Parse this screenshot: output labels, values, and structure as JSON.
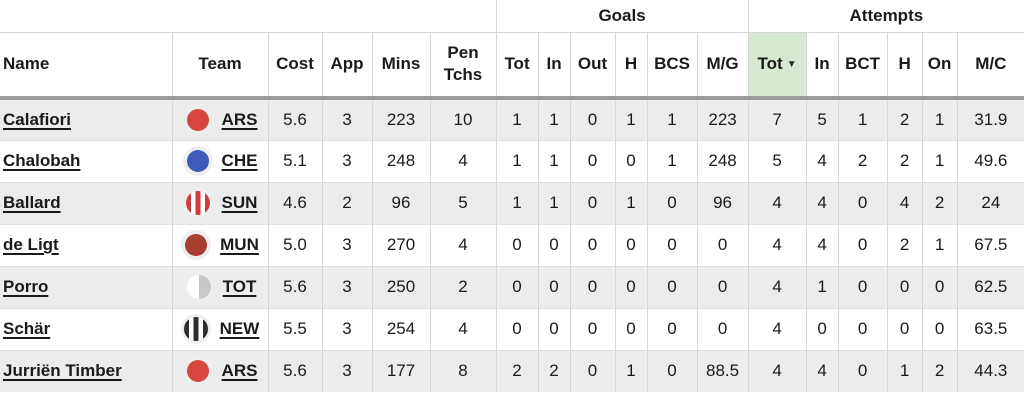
{
  "table": {
    "groups": {
      "goals": "Goals",
      "attempts": "Attempts"
    },
    "columns": [
      "Name",
      "Team",
      "Cost",
      "App",
      "Mins",
      "Pen Tchs",
      "Tot",
      "In",
      "Out",
      "H",
      "BCS",
      "M/G",
      "Tot",
      "In",
      "BCT",
      "H",
      "On",
      "M/C"
    ],
    "sort": {
      "column": "attempts-tot",
      "direction": "descending",
      "icon": "▼"
    },
    "rows": [
      {
        "name": "Calafiori",
        "team": "ARS",
        "badge": {
          "style": "solid",
          "color": "#d8473f"
        },
        "cost": "5.6",
        "app": "3",
        "mins": "223",
        "pen_tchs": "10",
        "goals": [
          "1",
          "1",
          "0",
          "1",
          "1",
          "223"
        ],
        "attempts": [
          "7",
          "5",
          "1",
          "2",
          "1",
          "31.9"
        ]
      },
      {
        "name": "Chalobah",
        "team": "CHE",
        "badge": {
          "style": "solid",
          "color": "#3f5bb8"
        },
        "cost": "5.1",
        "app": "3",
        "mins": "248",
        "pen_tchs": "4",
        "goals": [
          "1",
          "1",
          "0",
          "0",
          "1",
          "248"
        ],
        "attempts": [
          "5",
          "4",
          "2",
          "2",
          "1",
          "49.6"
        ]
      },
      {
        "name": "Ballard",
        "team": "SUN",
        "badge": {
          "style": "stripes",
          "color": "#d03c3c"
        },
        "cost": "4.6",
        "app": "2",
        "mins": "96",
        "pen_tchs": "5",
        "goals": [
          "1",
          "1",
          "0",
          "1",
          "0",
          "96"
        ],
        "attempts": [
          "4",
          "4",
          "0",
          "4",
          "2",
          "24"
        ]
      },
      {
        "name": "de Ligt",
        "team": "MUN",
        "badge": {
          "style": "solid",
          "color": "#a63e2f"
        },
        "cost": "5.0",
        "app": "3",
        "mins": "270",
        "pen_tchs": "4",
        "goals": [
          "0",
          "0",
          "0",
          "0",
          "0",
          "0"
        ],
        "attempts": [
          "4",
          "4",
          "0",
          "2",
          "1",
          "67.5"
        ]
      },
      {
        "name": "Porro",
        "team": "TOT",
        "badge": {
          "style": "half",
          "color": "#c9c9c9"
        },
        "cost": "5.6",
        "app": "3",
        "mins": "250",
        "pen_tchs": "2",
        "goals": [
          "0",
          "0",
          "0",
          "0",
          "0",
          "0"
        ],
        "attempts": [
          "4",
          "1",
          "0",
          "0",
          "0",
          "62.5"
        ]
      },
      {
        "name": "Schär",
        "team": "NEW",
        "badge": {
          "style": "stripes",
          "color": "#2e2e2e"
        },
        "cost": "5.5",
        "app": "3",
        "mins": "254",
        "pen_tchs": "4",
        "goals": [
          "0",
          "0",
          "0",
          "0",
          "0",
          "0"
        ],
        "attempts": [
          "4",
          "0",
          "0",
          "0",
          "0",
          "63.5"
        ]
      },
      {
        "name": "Jurriën Timber",
        "team": "ARS",
        "badge": {
          "style": "solid",
          "color": "#d8473f"
        },
        "cost": "5.6",
        "app": "3",
        "mins": "177",
        "pen_tchs": "8",
        "goals": [
          "2",
          "2",
          "0",
          "1",
          "0",
          "88.5"
        ],
        "attempts": [
          "4",
          "4",
          "0",
          "1",
          "2",
          "44.3"
        ]
      }
    ]
  },
  "colors": {
    "sorted_header_bg": "#d8e9d3",
    "row_alt_bg": "#ececec",
    "border": "#d6d6d6",
    "header_rule": "#9b9b9b",
    "text": "#1a1a1a",
    "badge_ring": "#eeeeee"
  }
}
